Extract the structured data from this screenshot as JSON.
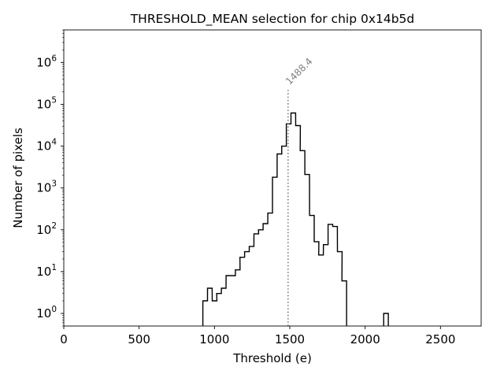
{
  "chart_data": {
    "type": "histogram",
    "title": "THRESHOLD_MEAN selection for chip 0x14b5d",
    "xlabel": "Threshold (e)",
    "ylabel": "Number of pixels",
    "xlim": [
      0,
      2770
    ],
    "ylim": [
      0.5,
      6000000
    ],
    "yscale": "log",
    "grid": false,
    "line_color": "#000000",
    "annotation_color": "#808080",
    "x_ticks": [
      {
        "value": 0,
        "label": "0"
      },
      {
        "value": 500,
        "label": "500"
      },
      {
        "value": 1000,
        "label": "1000"
      },
      {
        "value": 1500,
        "label": "1500"
      },
      {
        "value": 2000,
        "label": "2000"
      },
      {
        "value": 2500,
        "label": "2500"
      }
    ],
    "y_ticks": [
      {
        "exp": 0,
        "base": "10",
        "sup": "0"
      },
      {
        "exp": 1,
        "base": "10",
        "sup": "1"
      },
      {
        "exp": 2,
        "base": "10",
        "sup": "2"
      },
      {
        "exp": 3,
        "base": "10",
        "sup": "3"
      },
      {
        "exp": 4,
        "base": "10",
        "sup": "4"
      },
      {
        "exp": 5,
        "base": "10",
        "sup": "5"
      },
      {
        "exp": 6,
        "base": "10",
        "sup": "6"
      }
    ],
    "bin_width": 30.8,
    "bins": [
      {
        "x": 923,
        "count": 2
      },
      {
        "x": 954,
        "count": 4
      },
      {
        "x": 985,
        "count": 2
      },
      {
        "x": 1015,
        "count": 3
      },
      {
        "x": 1046,
        "count": 4
      },
      {
        "x": 1077,
        "count": 8
      },
      {
        "x": 1108,
        "count": 8
      },
      {
        "x": 1139,
        "count": 11
      },
      {
        "x": 1169,
        "count": 22
      },
      {
        "x": 1200,
        "count": 30
      },
      {
        "x": 1231,
        "count": 40
      },
      {
        "x": 1262,
        "count": 80
      },
      {
        "x": 1292,
        "count": 100
      },
      {
        "x": 1323,
        "count": 140
      },
      {
        "x": 1354,
        "count": 250
      },
      {
        "x": 1385,
        "count": 1800
      },
      {
        "x": 1416,
        "count": 6500
      },
      {
        "x": 1446,
        "count": 10000
      },
      {
        "x": 1477,
        "count": 34000
      },
      {
        "x": 1508,
        "count": 62000
      },
      {
        "x": 1539,
        "count": 31000
      },
      {
        "x": 1569,
        "count": 7800
      },
      {
        "x": 1600,
        "count": 2100
      },
      {
        "x": 1631,
        "count": 220
      },
      {
        "x": 1662,
        "count": 52
      },
      {
        "x": 1692,
        "count": 25
      },
      {
        "x": 1723,
        "count": 44
      },
      {
        "x": 1754,
        "count": 135
      },
      {
        "x": 1785,
        "count": 120
      },
      {
        "x": 1816,
        "count": 30
      },
      {
        "x": 1846,
        "count": 6
      },
      {
        "x": 2123,
        "count": 1
      }
    ],
    "vline": {
      "x": 1488.4,
      "label": "1488.4",
      "top_count": 220000
    }
  }
}
